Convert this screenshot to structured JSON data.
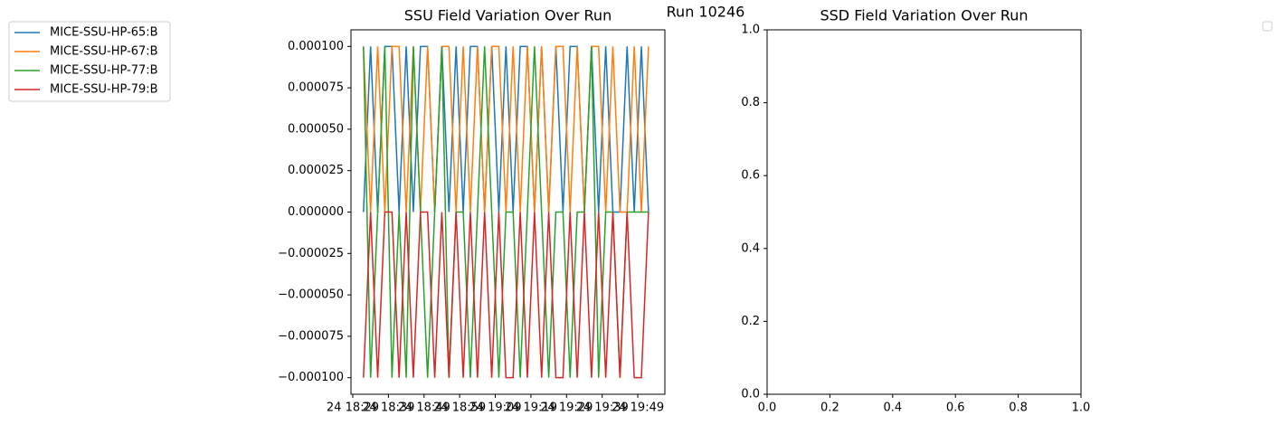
{
  "chart_data": [
    {
      "type": "line",
      "suptitle": "Run 10246",
      "title": "SSU Field Variation Over Run",
      "x": [
        1112,
        1114,
        1116,
        1118,
        1120,
        1122,
        1124,
        1126,
        1128,
        1130,
        1132,
        1134,
        1136,
        1138,
        1140,
        1142,
        1144,
        1146,
        1148,
        1150,
        1152,
        1154,
        1156,
        1158,
        1160,
        1162,
        1164,
        1166,
        1168,
        1170,
        1172,
        1174,
        1176,
        1178,
        1180,
        1182,
        1184,
        1186,
        1188,
        1190,
        1192
      ],
      "series": [
        {
          "name": "MICE-SSU-HP-65:B",
          "color": "#1f77b4",
          "values": [
            0,
            0.0001,
            0,
            0.0001,
            0.0001,
            0,
            0.0001,
            0,
            0.0001,
            0.0001,
            0,
            0.0001,
            0,
            0.0001,
            0,
            0.0001,
            0.0001,
            0,
            0.0001,
            0,
            0.0001,
            0,
            0.0001,
            0.0001,
            0,
            0.0001,
            0,
            0.0001,
            0,
            0.0001,
            0.0001,
            0,
            0.0001,
            0,
            0.0001,
            0,
            0,
            0.0001,
            0,
            0.0001,
            0
          ]
        },
        {
          "name": "MICE-SSU-HP-67:B",
          "color": "#ff7f0e",
          "values": [
            0.0001,
            0,
            0.0001,
            0,
            0.0001,
            0.0001,
            0,
            0.0001,
            0,
            0.0001,
            0,
            0.0001,
            0.0001,
            0,
            0.0001,
            0,
            0.0001,
            0,
            0.0001,
            0.0001,
            0,
            0.0001,
            0,
            0.0001,
            0,
            0.0001,
            0,
            0.0001,
            0.0001,
            0,
            0.0001,
            0,
            0.0001,
            0.0001,
            0,
            0.0001,
            0,
            0,
            0.0001,
            0,
            0.0001
          ]
        },
        {
          "name": "MICE-SSU-HP-77:B",
          "color": "#2ca02c",
          "values": [
            0.0001,
            -0.0001,
            0,
            0.0001,
            -0.0001,
            0,
            -0.0001,
            0.0001,
            0,
            -0.0001,
            0,
            0.0001,
            -0.0001,
            0,
            0,
            -0.0001,
            0,
            0.0001,
            0,
            -0.0001,
            0,
            0,
            -0.0001,
            0,
            0.0001,
            0,
            -0.0001,
            0,
            0,
            -0.0001,
            0,
            0,
            0.0001,
            -0.0001,
            0,
            0,
            -0.0001,
            0,
            0,
            0,
            0
          ]
        },
        {
          "name": "MICE-SSU-HP-79:B",
          "color": "#d62728",
          "values": [
            -0.0001,
            0,
            -0.0001,
            0,
            0,
            -0.0001,
            0,
            -0.0001,
            0,
            0,
            -0.0001,
            0,
            -0.0001,
            0,
            -0.0001,
            0,
            -0.0001,
            0,
            -0.0001,
            0,
            -0.0001,
            -0.0001,
            0,
            -0.0001,
            0,
            -0.0001,
            0,
            -0.0001,
            -0.0001,
            0,
            -0.0001,
            0,
            -0.0001,
            0,
            -0.0001,
            0,
            -0.0001,
            0,
            -0.0001,
            -0.0001,
            0
          ]
        }
      ],
      "xlim": [
        1108.5,
        1196.6
      ],
      "xticks": [
        {
          "value": 1109,
          "label": "24 18:29"
        },
        {
          "value": 1119,
          "label": "24 18:39"
        },
        {
          "value": 1129,
          "label": "24 18:49"
        },
        {
          "value": 1139,
          "label": "24 18:59"
        },
        {
          "value": 1149,
          "label": "24 19:09"
        },
        {
          "value": 1159,
          "label": "24 19:19"
        },
        {
          "value": 1169,
          "label": "24 19:29"
        },
        {
          "value": 1179,
          "label": "24 19:39"
        },
        {
          "value": 1189,
          "label": "24 19:49"
        }
      ],
      "ylim": [
        -0.00011,
        0.00011
      ],
      "yticks": [
        {
          "value": -0.0001,
          "label": "−0.000100"
        },
        {
          "value": -7.5e-05,
          "label": "−0.000075"
        },
        {
          "value": -5e-05,
          "label": "−0.000050"
        },
        {
          "value": -2.5e-05,
          "label": "−0.000025"
        },
        {
          "value": 0,
          "label": "0.000000"
        },
        {
          "value": 2.5e-05,
          "label": "0.000025"
        },
        {
          "value": 5e-05,
          "label": "0.000050"
        },
        {
          "value": 7.5e-05,
          "label": "0.000075"
        },
        {
          "value": 0.0001,
          "label": "0.000100"
        }
      ]
    },
    {
      "type": "line",
      "title": "SSD Field Variation Over Run",
      "series": [],
      "xlim": [
        0,
        1
      ],
      "xticks": [
        {
          "value": 0,
          "label": "0.0"
        },
        {
          "value": 0.2,
          "label": "0.2"
        },
        {
          "value": 0.4,
          "label": "0.4"
        },
        {
          "value": 0.6,
          "label": "0.6"
        },
        {
          "value": 0.8,
          "label": "0.8"
        },
        {
          "value": 1,
          "label": "1.0"
        }
      ],
      "ylim": [
        0,
        1
      ],
      "yticks": [
        {
          "value": 0,
          "label": "0.0"
        },
        {
          "value": 0.2,
          "label": "0.2"
        },
        {
          "value": 0.4,
          "label": "0.4"
        },
        {
          "value": 0.6,
          "label": "0.6"
        },
        {
          "value": 0.8,
          "label": "0.8"
        },
        {
          "value": 1,
          "label": "1.0"
        }
      ]
    }
  ]
}
